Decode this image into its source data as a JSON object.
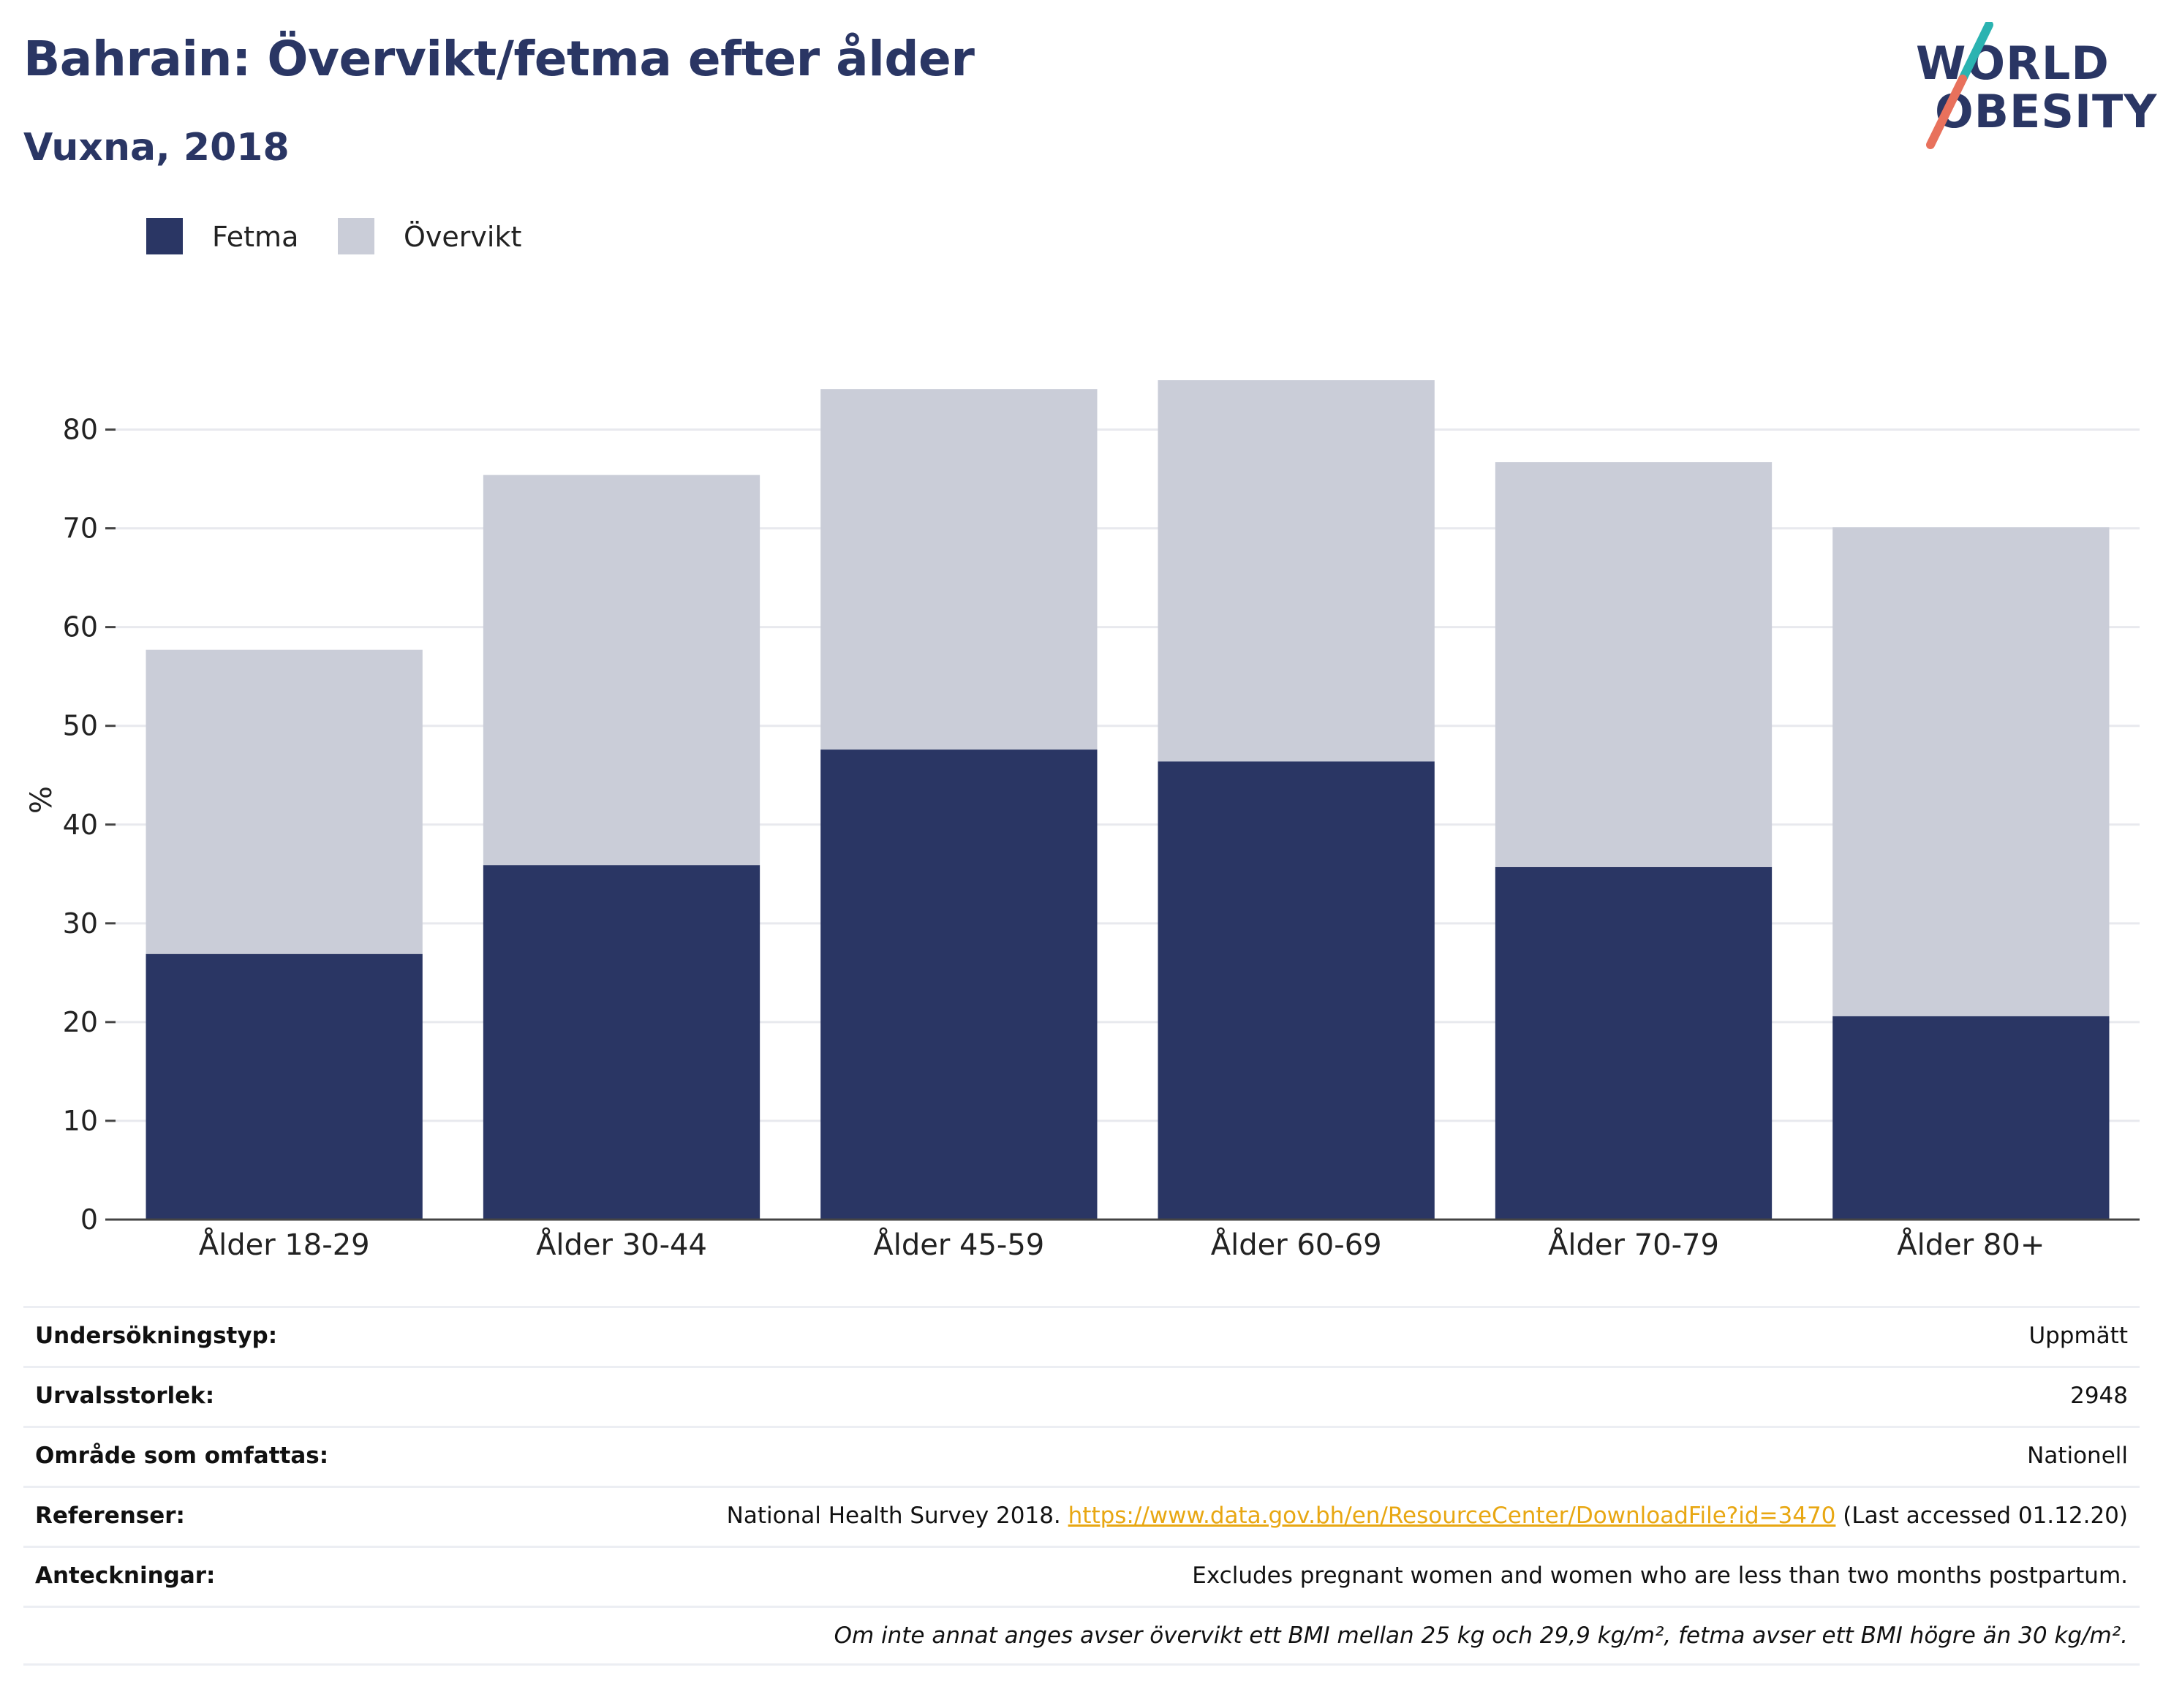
{
  "header": {
    "title": "Bahrain: Övervikt/fetma efter ålder",
    "subtitle": "Vuxna, 2018"
  },
  "logo": {
    "line1": "WORLD",
    "line2": "OBESITY",
    "colors": {
      "text": "#2a3664",
      "slash_top": "#2bb3b1",
      "slash_bottom": "#e8715c"
    }
  },
  "chart_data": {
    "type": "bar",
    "stacked": true,
    "categories": [
      "Ålder 18-29",
      "Ålder 30-44",
      "Ålder 45-59",
      "Ålder 60-69",
      "Ålder 70-79",
      "Ålder 80+"
    ],
    "series": [
      {
        "name": "Fetma",
        "color": "#2a3664",
        "values": [
          26.9,
          35.9,
          47.6,
          46.4,
          35.7,
          20.6
        ]
      },
      {
        "name": "Övervikt",
        "color": "#cacdd8",
        "values": [
          30.8,
          39.5,
          36.5,
          38.6,
          41.0,
          49.5
        ]
      }
    ],
    "ylabel": "%",
    "ylim": [
      0,
      85
    ],
    "yticks": [
      0,
      10,
      20,
      30,
      40,
      50,
      60,
      70,
      80
    ],
    "grid": true,
    "legend_position": "top-left"
  },
  "info": [
    {
      "label": "Undersökningstyp:",
      "value": "Uppmätt"
    },
    {
      "label": "Urvalsstorlek:",
      "value": "2948"
    },
    {
      "label": "Område som omfattas:",
      "value": "Nationell"
    },
    {
      "label": "Referenser:",
      "value_prefix": "National Health Survey 2018. ",
      "link": "https://www.data.gov.bh/en/ResourceCenter/DownloadFile?id=3470",
      "value_suffix": " (Last accessed 01.12.20)"
    },
    {
      "label": "Anteckningar:",
      "value": "Excludes pregnant women and women who are less than two months postpartum."
    },
    {
      "label": "",
      "value": "Om inte annat anges avser övervikt ett BMI mellan 25 kg och 29,9 kg/m², fetma avser ett BMI högre än 30 kg/m²."
    }
  ]
}
